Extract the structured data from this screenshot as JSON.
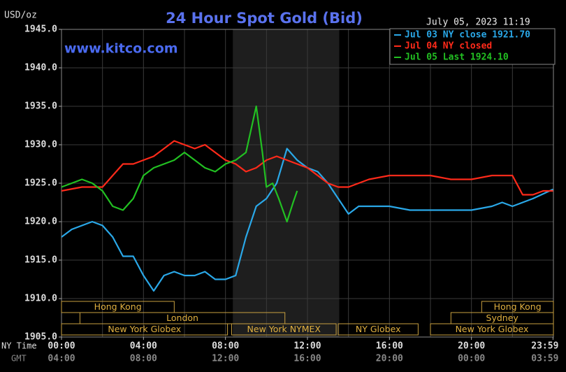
{
  "chart_data": {
    "type": "line",
    "title": "24 Hour Spot Gold (Bid)",
    "subtitle": "July 05, 2023 11:19",
    "watermark": "www.kitco.com",
    "y_label": "USD/oz",
    "x_label": "NY Time",
    "x2_label": "GMT",
    "ylim": [
      1905,
      1945
    ],
    "yticks": [
      {
        "value": 1905,
        "label": "1905.0"
      },
      {
        "value": 1910,
        "label": "1910.0"
      },
      {
        "value": 1915,
        "label": "1915.0"
      },
      {
        "value": 1920,
        "label": "1920.0"
      },
      {
        "value": 1925,
        "label": "1925.0"
      },
      {
        "value": 1930,
        "label": "1930.0"
      },
      {
        "value": 1935,
        "label": "1935.0"
      },
      {
        "value": 1940,
        "label": "1940.0"
      },
      {
        "value": 1945,
        "label": "1945.0"
      }
    ],
    "xlim": [
      0,
      24
    ],
    "xticks": [
      {
        "value": 0,
        "label": "00:00"
      },
      {
        "value": 4,
        "label": "04:00"
      },
      {
        "value": 8,
        "label": "08:00"
      },
      {
        "value": 12,
        "label": "12:00"
      },
      {
        "value": 16,
        "label": "16:00"
      },
      {
        "value": 20,
        "label": "20:00"
      },
      {
        "value": 23.98,
        "label": "23:59"
      }
    ],
    "x2tick_labels": [
      "04:00",
      "08:00",
      "12:00",
      "16:00",
      "20:00",
      "00:00",
      "03:59"
    ],
    "xgrid": [
      2,
      4,
      6,
      8,
      10,
      12,
      14,
      16,
      18,
      20,
      22
    ],
    "grid": true,
    "shaded_xrange": [
      8.36,
      13.55
    ],
    "sessions": [
      {
        "label": "Hong Kong",
        "start": 0,
        "end": 5.5
      },
      {
        "label": "London",
        "start": 0.9,
        "end": 10.9
      },
      {
        "label": "New York Globex",
        "start": 0,
        "end": 8.1
      },
      {
        "label": "New York NYMEX",
        "start": 8.3,
        "end": 13.4
      },
      {
        "label": "NY Globex",
        "start": 13.5,
        "end": 17.4
      },
      {
        "label": "Hong Kong",
        "start": 20.5,
        "end": 24
      },
      {
        "label": "Sydney",
        "start": 19,
        "end": 24
      },
      {
        "label": "New York Globex",
        "start": 18,
        "end": 24
      }
    ],
    "series": [
      {
        "name": "Jul 03 NY close 1921.70",
        "color": "#2aa8e8",
        "x": [
          0,
          0.5,
          1,
          1.5,
          2,
          2.5,
          3,
          3.5,
          4,
          4.5,
          5,
          5.5,
          6,
          6.5,
          7,
          7.5,
          8,
          8.5,
          9,
          9.5,
          10,
          10.5,
          11,
          11.5,
          12,
          12.5,
          13,
          13.5,
          14,
          14.5,
          15,
          16,
          17,
          18,
          19,
          20,
          21,
          21.5,
          22,
          22.5,
          23,
          23.98
        ],
        "values": [
          1918,
          1919,
          1919.5,
          1920,
          1919.5,
          1918,
          1915.5,
          1915.5,
          1913,
          1911,
          1913,
          1913.5,
          1913,
          1913,
          1913.5,
          1912.5,
          1912.5,
          1913,
          1918,
          1922,
          1923,
          1925,
          1929.5,
          1928,
          1927,
          1926.5,
          1925,
          1923,
          1921,
          1922,
          1922,
          1922,
          1921.5,
          1921.5,
          1921.5,
          1921.5,
          1922,
          1922.5,
          1922,
          1922.5,
          1923,
          1924.2
        ]
      },
      {
        "name": "Jul 04 NY closed",
        "color": "#ff2a1a",
        "x": [
          0,
          1,
          2,
          2.5,
          3,
          3.5,
          4,
          4.5,
          5,
          5.5,
          6,
          6.5,
          7,
          7.5,
          8,
          8.5,
          9,
          9.5,
          10,
          10.5,
          11,
          11.5,
          12,
          12.5,
          13,
          13.5,
          14,
          14.5,
          15,
          16,
          17,
          18,
          19,
          20,
          21,
          22,
          22.5,
          23,
          23.5,
          23.98
        ],
        "values": [
          1924,
          1924.5,
          1924.5,
          1926,
          1927.5,
          1927.5,
          1928,
          1928.5,
          1929.5,
          1930.5,
          1930,
          1929.5,
          1930,
          1929,
          1928,
          1927.5,
          1926.5,
          1927,
          1928,
          1928.5,
          1928,
          1927.5,
          1927,
          1926,
          1925,
          1924.5,
          1924.5,
          1925,
          1925.5,
          1926,
          1926,
          1926,
          1925.5,
          1925.5,
          1926,
          1926,
          1923.5,
          1923.5,
          1924,
          1924
        ]
      },
      {
        "name": "Jul 05 Last 1924.10",
        "color": "#22c022",
        "x": [
          0,
          0.5,
          1,
          1.5,
          2,
          2.5,
          3,
          3.5,
          4,
          4.5,
          5,
          5.5,
          6,
          6.5,
          7,
          7.5,
          8,
          8.5,
          9,
          9.5,
          9.8,
          10,
          10.3,
          10.6,
          11,
          11.3,
          11.5
        ],
        "values": [
          1924.5,
          1925,
          1925.5,
          1925,
          1924,
          1922,
          1921.5,
          1923,
          1926,
          1927,
          1927.5,
          1928,
          1929,
          1928,
          1927,
          1926.5,
          1927.5,
          1928,
          1929,
          1935,
          1929,
          1924.5,
          1925,
          1923,
          1920,
          1922.5,
          1924
        ]
      }
    ]
  }
}
